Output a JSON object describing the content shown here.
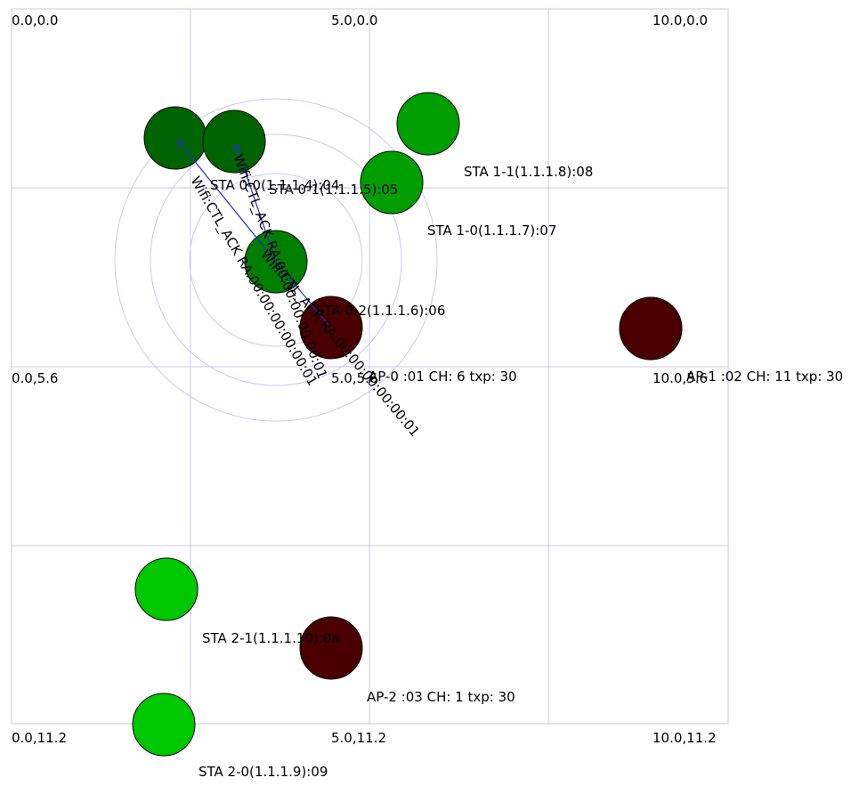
{
  "corner_labels": {
    "tl": "0.0,0.0",
    "tm": "5.0,0.0",
    "tr": "10.0,0.0",
    "ml": "0.0,5.6",
    "mm": "5.0,5.6",
    "mr": "10.0,5.6",
    "bl": "0.0,11.2",
    "bm": "5.0,11.2",
    "br": "10.0,11.2"
  },
  "nodes": [
    {
      "id": "sta-0-0",
      "label": "STA 0-0(1.1.1.4):04",
      "color": "#006400"
    },
    {
      "id": "sta-0-1",
      "label": "STA 0-1(1.1.1.5):05",
      "color": "#006400"
    },
    {
      "id": "sta-0-2",
      "label": "STA 0-2(1.1.1.6):06",
      "color": "#007f00"
    },
    {
      "id": "sta-1-0",
      "label": "STA 1-0(1.1.1.7):07",
      "color": "#009e00"
    },
    {
      "id": "sta-1-1",
      "label": "STA 1-1(1.1.1.8):08",
      "color": "#009e00"
    },
    {
      "id": "sta-2-0",
      "label": "STA 2-0(1.1.1.9):09",
      "color": "#00c800"
    },
    {
      "id": "sta-2-1",
      "label": "STA 2-1(1.1.1.10):0a",
      "color": "#00c800"
    },
    {
      "id": "ap-0",
      "label": "AP-0 :01 CH: 6 txp: 30",
      "color": "#4a0000"
    },
    {
      "id": "ap-1",
      "label": "AP-1 :02 CH: 11 txp: 30",
      "color": "#4a0000"
    },
    {
      "id": "ap-2",
      "label": "AP-2 :03 CH: 1 txp: 30",
      "color": "#4a0000"
    }
  ],
  "packets": [
    {
      "id": "pkt-a",
      "text": "Wifi:CTL_ACK RA:00:00:00:00:00:01"
    },
    {
      "id": "pkt-b",
      "text": "Wifi:CTL_ACK RA:00:00:00:00:00:01"
    },
    {
      "id": "pkt-c",
      "text": "Wifi:CTL_ACK RA:00:00:00:00:00:01"
    }
  ]
}
